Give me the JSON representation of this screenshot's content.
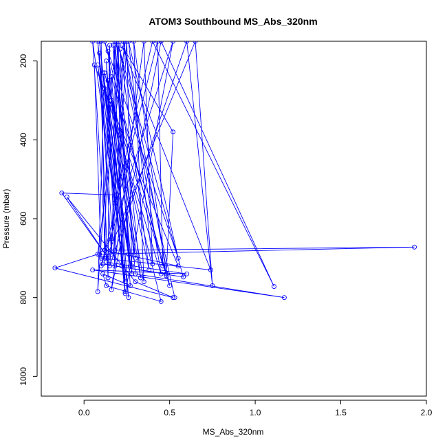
{
  "chart_data": {
    "type": "line",
    "title": "ATOM3 Southbound MS_Abs_320nm",
    "xlabel": "MS_Abs_320nm",
    "ylabel": "Pressure (mbar)",
    "xlim": [
      -0.25,
      2.0
    ],
    "ylim": [
      1050,
      150
    ],
    "x_ticks": [
      0.0,
      0.5,
      1.0,
      1.5,
      2.0
    ],
    "x_tick_labels": [
      "0.0",
      "0.5",
      "1.0",
      "1.5",
      "2.0"
    ],
    "y_ticks": [
      200,
      400,
      600,
      800,
      1000
    ],
    "y_tick_labels": [
      "200",
      "400",
      "600",
      "800",
      "1000"
    ],
    "grid": false,
    "series": [
      {
        "color": "#0000ff",
        "marker": "open-circle",
        "points": [
          [
            0.1,
            150
          ],
          [
            0.12,
            700
          ],
          [
            0.15,
            160
          ],
          [
            0.14,
            750
          ],
          [
            0.09,
            180
          ],
          [
            0.16,
            690
          ],
          [
            0.2,
            150
          ],
          [
            0.22,
            720
          ],
          [
            0.13,
            200
          ],
          [
            0.18,
            680
          ],
          [
            0.25,
            150
          ],
          [
            0.28,
            740
          ],
          [
            0.11,
            230
          ],
          [
            0.3,
            700
          ],
          [
            0.17,
            160
          ],
          [
            0.24,
            760
          ],
          [
            0.08,
            210
          ],
          [
            0.27,
            720
          ],
          [
            0.19,
            150
          ],
          [
            0.33,
            750
          ],
          [
            0.14,
            250
          ],
          [
            0.38,
            730
          ],
          [
            0.21,
            170
          ],
          [
            0.26,
            690
          ],
          [
            0.12,
            270
          ],
          [
            0.45,
            740
          ],
          [
            0.23,
            150
          ],
          [
            0.5,
            770
          ],
          [
            0.16,
            300
          ],
          [
            0.35,
            760
          ],
          [
            0.29,
            150
          ],
          [
            0.48,
            745
          ],
          [
            0.52,
            380
          ],
          [
            0.22,
            160
          ],
          [
            0.74,
            730
          ],
          [
            0.1,
            700
          ],
          [
            0.06,
            210
          ],
          [
            0.55,
            720
          ],
          [
            0.12,
            680
          ],
          [
            1.93,
            672
          ],
          [
            0.09,
            690
          ],
          [
            0.16,
            650
          ],
          [
            0.19,
            540
          ],
          [
            -0.13,
            535
          ],
          [
            0.14,
            700
          ],
          [
            -0.1,
            545
          ],
          [
            0.3,
            760
          ],
          [
            0.52,
            800
          ],
          [
            -0.17,
            725
          ],
          [
            0.08,
            690
          ],
          [
            0.24,
            150
          ],
          [
            0.15,
            720
          ],
          [
            0.6,
            150
          ],
          [
            0.75,
            770
          ],
          [
            0.65,
            150
          ],
          [
            0.13,
            700
          ],
          [
            0.05,
            150
          ],
          [
            0.18,
            560
          ],
          [
            0.4,
            150
          ],
          [
            1.11,
            772
          ],
          [
            0.45,
            150
          ],
          [
            0.16,
            780
          ],
          [
            0.35,
            150
          ],
          [
            0.4,
            715
          ],
          [
            0.26,
            150
          ],
          [
            0.55,
            700
          ],
          [
            0.12,
            150
          ],
          [
            0.46,
            720
          ],
          [
            0.43,
            150
          ],
          [
            0.1,
            720
          ],
          [
            0.52,
            150
          ],
          [
            0.24,
            790
          ],
          [
            0.08,
            150
          ],
          [
            0.18,
            720
          ],
          [
            0.18,
            160
          ],
          [
            0.08,
            785
          ],
          [
            0.12,
            230
          ],
          [
            0.45,
            810
          ],
          [
            0.13,
            770
          ],
          [
            0.11,
            740
          ],
          [
            0.27,
            770
          ],
          [
            0.18,
            150
          ],
          [
            0.3,
            740
          ],
          [
            1.17,
            800
          ],
          [
            0.05,
            730
          ],
          [
            0.6,
            740
          ],
          [
            0.13,
            710
          ],
          [
            0.28,
            720
          ],
          [
            0.14,
            175
          ],
          [
            0.24,
            785
          ],
          [
            0.09,
            150
          ],
          [
            0.26,
            800
          ],
          [
            0.16,
            240
          ],
          [
            0.48,
            740
          ],
          [
            0.11,
            715
          ],
          [
            0.58,
            748
          ],
          [
            0.2,
            160
          ],
          [
            0.53,
            800
          ]
        ]
      }
    ]
  }
}
